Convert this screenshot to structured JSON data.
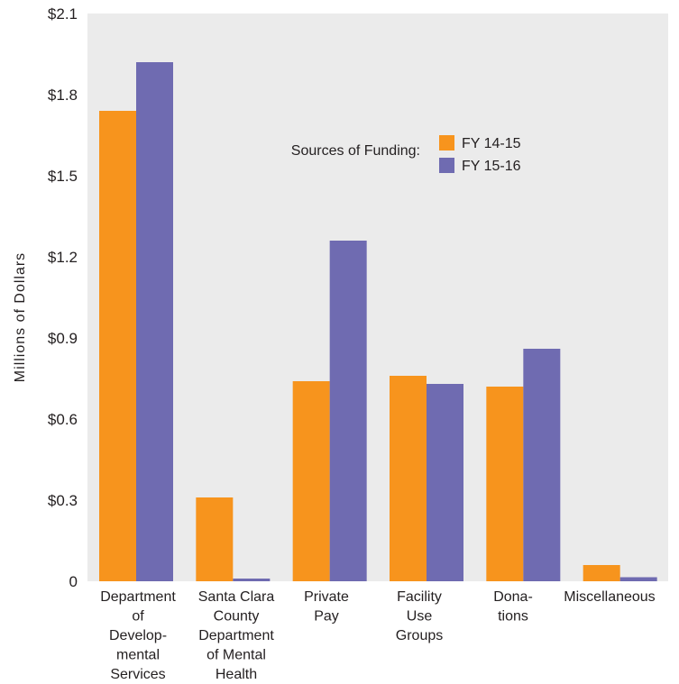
{
  "chart_data": {
    "type": "bar",
    "ylabel": "Millions of Dollars",
    "ylim": [
      0,
      2.1
    ],
    "yticks": [
      {
        "value": 0,
        "label": "0"
      },
      {
        "value": 0.3,
        "label": "$0.3"
      },
      {
        "value": 0.6,
        "label": "$0.6"
      },
      {
        "value": 0.9,
        "label": "$0.9"
      },
      {
        "value": 1.2,
        "label": "$1.2"
      },
      {
        "value": 1.5,
        "label": "$1.5"
      },
      {
        "value": 1.8,
        "label": "$1.8"
      },
      {
        "value": 2.1,
        "label": "$2.1"
      }
    ],
    "categories": [
      [
        "Department",
        "of",
        "Develop-",
        "mental",
        "Services"
      ],
      [
        "Santa Clara",
        "County",
        "Department",
        "of Mental",
        "Health"
      ],
      [
        "Private",
        "Pay"
      ],
      [
        "Facility",
        "Use",
        "Groups"
      ],
      [
        "Dona-",
        "tions"
      ],
      [
        "Miscellaneous"
      ]
    ],
    "series": [
      {
        "name": "FY 14-15",
        "color": "#f7941d",
        "values": [
          1.74,
          0.31,
          0.74,
          0.76,
          0.72,
          0.06
        ]
      },
      {
        "name": "FY 15-16",
        "color": "#6f6bb1",
        "values": [
          1.92,
          0.01,
          1.26,
          0.73,
          0.86,
          0.015
        ]
      }
    ],
    "legend": {
      "title": "Sources of Funding:",
      "placement": "upper-center"
    },
    "plot_background": "#ebebeb",
    "grid": false
  }
}
